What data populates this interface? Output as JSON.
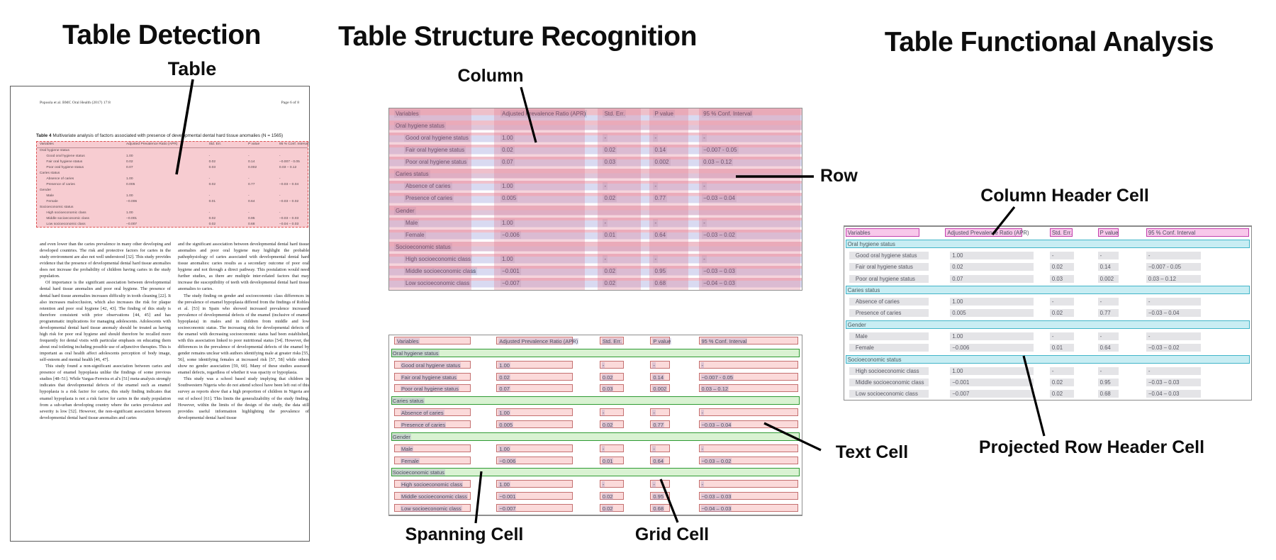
{
  "shared_table": {
    "caption_label": "Table 4",
    "caption_text": " Multivariate analysis of factors associated with presence of developmental dental hard tissue anomalies (N = 1565)",
    "columns": [
      "Variables",
      "Adjusted Prevalence Ratio (APR)",
      "Std. Err.",
      "P value",
      "95 % Conf. Interval"
    ],
    "rows": [
      {
        "type": "section",
        "label": "Oral hygiene status",
        "values": [
          "",
          "",
          "",
          ""
        ]
      },
      {
        "type": "data",
        "label": "Good oral hygiene status",
        "values": [
          "1.00",
          "-",
          "-",
          "-"
        ]
      },
      {
        "type": "data",
        "label": "Fair oral hygiene status",
        "values": [
          "0.02",
          "0.02",
          "0.14",
          "−0.007 - 0.05"
        ]
      },
      {
        "type": "data",
        "label": "Poor oral hygiene status",
        "values": [
          "0.07",
          "0.03",
          "0.002",
          "0.03 – 0.12"
        ]
      },
      {
        "type": "section",
        "label": "Caries status",
        "values": [
          "",
          "",
          "",
          ""
        ]
      },
      {
        "type": "data",
        "label": "Absence of caries",
        "values": [
          "1.00",
          "-",
          "-",
          "-"
        ]
      },
      {
        "type": "data",
        "label": "Presence of caries",
        "values": [
          "0.005",
          "0.02",
          "0.77",
          "−0.03 – 0.04"
        ]
      },
      {
        "type": "section",
        "label": "Gender",
        "values": [
          "",
          "",
          "",
          ""
        ]
      },
      {
        "type": "data",
        "label": "Male",
        "values": [
          "1.00",
          "-",
          "-",
          "-"
        ]
      },
      {
        "type": "data",
        "label": "Female",
        "values": [
          "−0.006",
          "0.01",
          "0.64",
          "−0.03 – 0.02"
        ]
      },
      {
        "type": "section",
        "label": "Socioeconomic status",
        "values": [
          "",
          "",
          "",
          ""
        ]
      },
      {
        "type": "data",
        "label": "High socioeconomic class",
        "values": [
          "1.00",
          "-",
          "-",
          "-"
        ]
      },
      {
        "type": "data",
        "label": "Middle socioeconomic class",
        "values": [
          "−0.001",
          "0.02",
          "0.95",
          "−0.03 – 0.03"
        ]
      },
      {
        "type": "data",
        "label": "Low socioeconomic class",
        "values": [
          "−0.007",
          "0.02",
          "0.68",
          "−0.04 – 0.03"
        ]
      }
    ]
  },
  "panels": {
    "detection": {
      "title": "Table Detection",
      "table_label": "Table",
      "page": {
        "header_left": "Popoola et al. BMC Oral Health  (2017) 17:8",
        "header_right": "Page 6 of 8",
        "body_left": [
          "and even lower than the caries prevalence in many other developing and developed countries. The risk and protective factors for caries in the study environment are also not well understood [32]. This study provides evidence that the presence of developmental dental hard tissue anomalies does not increase the probability of children having caries in the study population.",
          "Of importance is the significant association between developmental dental hard tissue anomalies and poor oral hygiene. The presence of dental hard tissue anomalies increases difficulty in tooth cleaning [22]. It also increases malocclusion, which also increases the risk for plaque retention and poor oral hygiene [42, 43]. The finding of this study is therefore consistent with prior observations [44, 45] and has programmatic implications for managing adolescents. Adolescents with developmental dental hard tissue anomaly should be treated as having high risk for poor oral hygiene and should therefore be recalled more frequently for dental visits with particular emphasis on educating them about oral toileting including possible use of adjunctive therapies. This is important as oral health affect adolescents perception of body image, self-esteem and mental health [46, 47].",
          "This study found a non-significant association between caries and presence of enamel hypoplasia unlike the findings of some previous studies [48–51]. While Vargas-Ferreira et al's [51] meta-analysis strongly indicates that developmental defects of the enamel such as enamel hypoplasia is a risk factor for caries, this study finding indicates that enamel hypoplasia is not a risk factor for caries in the study population from a sub-urban developing country where the caries prevalence and severity is low [52]. However, the non-significant association between developmental dental hard tissue anomalies and caries"
        ],
        "body_right": [
          "and the significant association between developmental dental hard tissue anomalies and poor oral hygiene may highlight the probable pathophysiology of caries associated with developmental dental hard tissue anomalies: caries results as a secondary outcome of poor oral hygiene and not through a direct pathway. This postulation would need further studies, as there are multiple inter-related factors that may increase the susceptibility of teeth with developmental dental hard tissue anomalies to caries.",
          "The study finding on gender and socioeconomic class differences in the prevalence of enamel hypoplasia differed from the findings of Robles et al. [53] in Spain who showed increased prevalence increased prevalence of developmental defects of the enamel (inclusive of enamel hypoplasia) in males and in children from middle and low socioeconomic status. The increasing risk for developmental defects of the enamel with decreasing socioeconomic status had been established, with this association linked to poor nutritional status [54]. However, the differences in the prevalence of developmental defects of the enamel by gender remains unclear with authors identifying male at greater risks [55, 56], some identifying females at increased risk [57, 58] while others show no gender association [59, 60]. Many of these studies assessed enamel defects, regardless of whether it was opacity or hypoplasia.",
          "This study was a school based study implying that children in Southwestern Nigeria who do not attend school have been left out of this survey as reports show that a high proportion of children in Nigeria are out of school [61]. This limits the generalizability of the study finding. However, within the limits of the design of the study, the data still provides useful information highlighting the prevalence of developmental dental hard tissue"
        ]
      }
    },
    "structure": {
      "title": "Table Structure Recognition",
      "labels": {
        "column": "Column",
        "row": "Row",
        "spanning_cell": "Spanning Cell",
        "text_cell": "Text Cell",
        "grid_cell": "Grid Cell"
      }
    },
    "functional": {
      "title": "Table Functional Analysis",
      "labels": {
        "column_header_cell": "Column Header Cell",
        "projected_row_header_cell": "Projected Row Header Cell"
      }
    }
  },
  "colors": {
    "detection_fill": "#f7ccd1",
    "detection_border": "#dd5252",
    "row_stripe_pink": "#f0c2cd",
    "row_stripe_lavender": "#d9daf1",
    "column_band": "rgba(225,125,148,0.33)",
    "cell_fill": "#fbdada",
    "cell_border": "#c47070",
    "spanning_cell_fill": "#d9f2d2",
    "spanning_cell_border": "#2f9b33",
    "header_cell_fill": "#f8c8ea",
    "header_cell_border": "#c240ad",
    "projected_header_fill": "#c8edf3",
    "projected_header_border": "#41b5c9",
    "grid_cell_fill": "#e4e4e7"
  }
}
